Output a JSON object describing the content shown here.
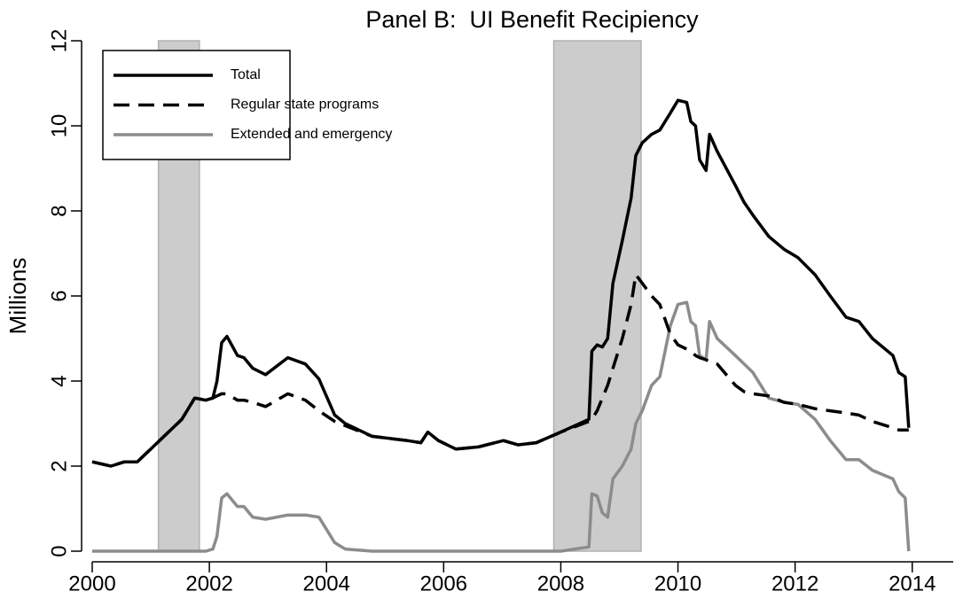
{
  "chart_data": {
    "type": "line",
    "title": "Panel B:  UI Benefit Recipiency",
    "y_label": "Millions",
    "x": [
      2000.0,
      2000.32,
      2000.55,
      2000.77,
      2001.15,
      2001.53,
      2001.75,
      2001.94,
      2002.06,
      2002.13,
      2002.21,
      2002.3,
      2002.48,
      2002.59,
      2002.74,
      2002.96,
      2003.34,
      2003.64,
      2003.87,
      2004.14,
      2004.32,
      2004.78,
      2005.38,
      2005.61,
      2005.73,
      2005.91,
      2006.21,
      2006.59,
      2007.02,
      2007.27,
      2007.58,
      2008.0,
      2008.48,
      2008.53,
      2008.62,
      2008.71,
      2008.8,
      2008.89,
      2009.05,
      2009.2,
      2009.28,
      2009.39,
      2009.55,
      2009.69,
      2009.87,
      2010.0,
      2010.15,
      2010.22,
      2010.3,
      2010.37,
      2010.48,
      2010.54,
      2010.67,
      2010.98,
      2011.13,
      2011.28,
      2011.55,
      2011.81,
      2012.05,
      2012.34,
      2012.6,
      2012.87,
      2013.09,
      2013.32,
      2013.67,
      2013.77,
      2013.88,
      2013.94
    ],
    "series": [
      {
        "name": "Total",
        "color": "#000000",
        "dash": "solid",
        "values": [
          2.1,
          2.0,
          2.1,
          2.1,
          2.6,
          3.1,
          3.6,
          3.55,
          3.6,
          4.0,
          4.9,
          5.05,
          4.6,
          4.55,
          4.3,
          4.15,
          4.55,
          4.4,
          4.05,
          3.2,
          3.0,
          2.7,
          2.6,
          2.55,
          2.8,
          2.6,
          2.4,
          2.45,
          2.6,
          2.5,
          2.55,
          2.8,
          3.1,
          4.7,
          4.85,
          4.8,
          5.0,
          6.3,
          7.3,
          8.3,
          9.3,
          9.6,
          9.8,
          9.9,
          10.3,
          10.6,
          10.55,
          10.1,
          10.0,
          9.2,
          8.95,
          9.8,
          9.4,
          8.6,
          8.2,
          7.9,
          7.4,
          7.1,
          6.9,
          6.5,
          6.0,
          5.5,
          5.4,
          5.0,
          4.6,
          4.2,
          4.1,
          2.9
        ]
      },
      {
        "name": "Regular state programs",
        "color": "#000000",
        "dash": "dashed",
        "values": [
          2.1,
          2.0,
          2.1,
          2.1,
          2.6,
          3.1,
          3.6,
          3.55,
          3.6,
          3.65,
          3.7,
          3.7,
          3.55,
          3.55,
          3.5,
          3.4,
          3.7,
          3.55,
          3.3,
          3.05,
          2.95,
          2.7,
          2.6,
          2.55,
          2.8,
          2.6,
          2.4,
          2.45,
          2.6,
          2.5,
          2.55,
          2.8,
          3.05,
          3.1,
          3.3,
          3.6,
          3.9,
          4.3,
          5.0,
          5.8,
          6.5,
          6.3,
          6.0,
          5.8,
          5.1,
          4.85,
          4.75,
          4.7,
          4.6,
          4.55,
          4.5,
          4.45,
          4.4,
          3.9,
          3.75,
          3.7,
          3.65,
          3.5,
          3.45,
          3.35,
          3.3,
          3.25,
          3.2,
          3.05,
          2.9,
          2.85,
          2.85,
          2.85
        ]
      },
      {
        "name": "Extended and emergency",
        "color": "#8c8c8c",
        "dash": "solid",
        "values": [
          0,
          0,
          0,
          0,
          0,
          0,
          0,
          0,
          0.05,
          0.35,
          1.25,
          1.35,
          1.05,
          1.05,
          0.8,
          0.75,
          0.85,
          0.85,
          0.8,
          0.2,
          0.05,
          0,
          0,
          0,
          0,
          0,
          0,
          0,
          0,
          0,
          0,
          0,
          0.1,
          1.35,
          1.3,
          0.9,
          0.8,
          1.7,
          2.0,
          2.4,
          3.0,
          3.3,
          3.9,
          4.1,
          5.3,
          5.8,
          5.85,
          5.4,
          5.3,
          4.6,
          4.5,
          5.4,
          5.0,
          4.6,
          4.4,
          4.2,
          3.6,
          3.5,
          3.45,
          3.1,
          2.6,
          2.15,
          2.15,
          1.9,
          1.7,
          1.4,
          1.25,
          0
        ]
      }
    ],
    "recessions": [
      [
        2001.13,
        2001.83
      ],
      [
        2007.88,
        2009.37
      ]
    ],
    "recession_color": "#cccccc",
    "xlim": [
      2000,
      2014.7
    ],
    "xticks": [
      2000,
      2002,
      2004,
      2006,
      2008,
      2010,
      2012,
      2014
    ],
    "ylim": [
      0,
      12
    ],
    "yticks": [
      0,
      2,
      4,
      6,
      8,
      10,
      12
    ],
    "legend": "top-left"
  }
}
